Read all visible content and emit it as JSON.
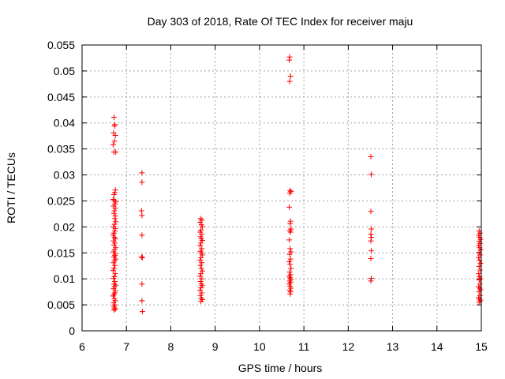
{
  "chart_data": {
    "type": "scatter",
    "title": "Day 303 of 2018, Rate Of TEC Index for receiver maju",
    "xlabel": "GPS time / hours",
    "ylabel": "ROTI / TECUs",
    "xlim": [
      6,
      15
    ],
    "ylim": [
      0,
      0.055
    ],
    "x_ticks": [
      6,
      7,
      8,
      9,
      10,
      11,
      12,
      13,
      14,
      15
    ],
    "x_tick_labels": [
      "6",
      "7",
      "8",
      "9",
      "10",
      "11",
      "12",
      "13",
      "14",
      "15"
    ],
    "y_ticks": [
      0,
      0.005,
      0.01,
      0.015,
      0.02,
      0.025,
      0.03,
      0.035,
      0.04,
      0.045,
      0.05,
      0.055
    ],
    "y_tick_labels": [
      "0",
      "0.005",
      "0.01",
      "0.015",
      "0.02",
      "0.025",
      "0.03",
      "0.035",
      "0.04",
      "0.045",
      "0.05",
      "0.055"
    ],
    "grid": true,
    "marker": "+",
    "marker_color": "#ff0000",
    "series": [
      {
        "name": "ROTI",
        "points": [
          [
            6.72,
            0.0411
          ],
          [
            6.74,
            0.0397
          ],
          [
            6.73,
            0.0394
          ],
          [
            6.71,
            0.0381
          ],
          [
            6.75,
            0.0376
          ],
          [
            6.73,
            0.0365
          ],
          [
            6.7,
            0.0358
          ],
          [
            6.72,
            0.0344
          ],
          [
            6.76,
            0.0344
          ],
          [
            6.75,
            0.0271
          ],
          [
            6.74,
            0.0266
          ],
          [
            6.72,
            0.0262
          ],
          [
            6.7,
            0.0253
          ],
          [
            6.73,
            0.0251
          ],
          [
            6.76,
            0.0248
          ],
          [
            6.74,
            0.0244
          ],
          [
            6.71,
            0.024
          ],
          [
            6.75,
            0.0236
          ],
          [
            6.73,
            0.0231
          ],
          [
            6.72,
            0.0226
          ],
          [
            6.75,
            0.0221
          ],
          [
            6.74,
            0.0216
          ],
          [
            6.76,
            0.021
          ],
          [
            6.73,
            0.0205
          ],
          [
            6.71,
            0.02
          ],
          [
            6.75,
            0.0197
          ],
          [
            6.74,
            0.0192
          ],
          [
            6.72,
            0.0188
          ],
          [
            6.7,
            0.0184
          ],
          [
            6.73,
            0.018
          ],
          [
            6.75,
            0.0177
          ],
          [
            6.71,
            0.0173
          ],
          [
            6.74,
            0.0169
          ],
          [
            6.72,
            0.0165
          ],
          [
            6.76,
            0.016
          ],
          [
            6.73,
            0.0156
          ],
          [
            6.71,
            0.0152
          ],
          [
            6.75,
            0.0148
          ],
          [
            6.74,
            0.0145
          ],
          [
            6.72,
            0.0142
          ],
          [
            6.76,
            0.0138
          ],
          [
            6.73,
            0.0135
          ],
          [
            6.71,
            0.0131
          ],
          [
            6.74,
            0.0126
          ],
          [
            6.72,
            0.012
          ],
          [
            6.7,
            0.0116
          ],
          [
            6.75,
            0.011
          ],
          [
            6.73,
            0.0104
          ],
          [
            6.71,
            0.0101
          ],
          [
            6.74,
            0.0095
          ],
          [
            6.72,
            0.009
          ],
          [
            6.76,
            0.0088
          ],
          [
            6.73,
            0.0085
          ],
          [
            6.71,
            0.0081
          ],
          [
            6.75,
            0.0077
          ],
          [
            6.74,
            0.0073
          ],
          [
            6.72,
            0.007
          ],
          [
            6.7,
            0.0067
          ],
          [
            6.73,
            0.0062
          ],
          [
            6.75,
            0.0058
          ],
          [
            6.71,
            0.0054
          ],
          [
            6.74,
            0.005
          ],
          [
            6.72,
            0.0047
          ],
          [
            6.73,
            0.0044
          ],
          [
            6.75,
            0.0042
          ],
          [
            6.72,
            0.004
          ],
          [
            7.35,
            0.0304
          ],
          [
            7.35,
            0.0286
          ],
          [
            7.34,
            0.0231
          ],
          [
            7.35,
            0.0222
          ],
          [
            7.35,
            0.0184
          ],
          [
            7.34,
            0.0142
          ],
          [
            7.36,
            0.0141
          ],
          [
            7.35,
            0.009
          ],
          [
            7.35,
            0.0058
          ],
          [
            7.36,
            0.0037
          ],
          [
            8.67,
            0.0216
          ],
          [
            8.7,
            0.0213
          ],
          [
            8.66,
            0.0209
          ],
          [
            8.69,
            0.0204
          ],
          [
            8.71,
            0.02
          ],
          [
            8.68,
            0.0194
          ],
          [
            8.66,
            0.019
          ],
          [
            8.7,
            0.0186
          ],
          [
            8.67,
            0.0181
          ],
          [
            8.69,
            0.0177
          ],
          [
            8.71,
            0.0174
          ],
          [
            8.68,
            0.0169
          ],
          [
            8.66,
            0.0164
          ],
          [
            8.7,
            0.0158
          ],
          [
            8.67,
            0.0153
          ],
          [
            8.69,
            0.015
          ],
          [
            8.71,
            0.0146
          ],
          [
            8.68,
            0.0141
          ],
          [
            8.66,
            0.0136
          ],
          [
            8.7,
            0.0131
          ],
          [
            8.67,
            0.0126
          ],
          [
            8.69,
            0.012
          ],
          [
            8.71,
            0.0115
          ],
          [
            8.68,
            0.011
          ],
          [
            8.66,
            0.0105
          ],
          [
            8.7,
            0.01
          ],
          [
            8.67,
            0.0095
          ],
          [
            8.69,
            0.009
          ],
          [
            8.71,
            0.0087
          ],
          [
            8.68,
            0.0083
          ],
          [
            8.66,
            0.0078
          ],
          [
            8.7,
            0.0073
          ],
          [
            8.67,
            0.0068
          ],
          [
            8.69,
            0.0063
          ],
          [
            8.71,
            0.006
          ],
          [
            8.68,
            0.0057
          ],
          [
            10.68,
            0.0527
          ],
          [
            10.67,
            0.0521
          ],
          [
            10.7,
            0.049
          ],
          [
            10.68,
            0.048
          ],
          [
            10.69,
            0.027
          ],
          [
            10.71,
            0.0268
          ],
          [
            10.68,
            0.0265
          ],
          [
            10.67,
            0.0238
          ],
          [
            10.7,
            0.0211
          ],
          [
            10.69,
            0.0206
          ],
          [
            10.71,
            0.0196
          ],
          [
            10.68,
            0.0193
          ],
          [
            10.7,
            0.019
          ],
          [
            10.67,
            0.0175
          ],
          [
            10.69,
            0.0158
          ],
          [
            10.71,
            0.0152
          ],
          [
            10.68,
            0.0147
          ],
          [
            10.7,
            0.0138
          ],
          [
            10.67,
            0.0133
          ],
          [
            10.69,
            0.0128
          ],
          [
            10.71,
            0.012
          ],
          [
            10.68,
            0.0113
          ],
          [
            10.7,
            0.0108
          ],
          [
            10.67,
            0.0105
          ],
          [
            10.69,
            0.0102
          ],
          [
            10.71,
            0.0099
          ],
          [
            10.68,
            0.0096
          ],
          [
            10.7,
            0.0093
          ],
          [
            10.67,
            0.009
          ],
          [
            10.69,
            0.0086
          ],
          [
            10.71,
            0.0082
          ],
          [
            10.68,
            0.0078
          ],
          [
            10.7,
            0.0075
          ],
          [
            10.69,
            0.0071
          ],
          [
            12.51,
            0.0335
          ],
          [
            12.52,
            0.0301
          ],
          [
            12.51,
            0.023
          ],
          [
            12.52,
            0.0196
          ],
          [
            12.51,
            0.0186
          ],
          [
            12.52,
            0.018
          ],
          [
            12.51,
            0.0173
          ],
          [
            12.52,
            0.0154
          ],
          [
            12.51,
            0.0139
          ],
          [
            12.52,
            0.0101
          ],
          [
            12.51,
            0.0096
          ],
          [
            14.95,
            0.0192
          ],
          [
            14.97,
            0.0188
          ],
          [
            14.94,
            0.0184
          ],
          [
            14.96,
            0.018
          ],
          [
            14.98,
            0.0176
          ],
          [
            14.95,
            0.0172
          ],
          [
            14.97,
            0.0168
          ],
          [
            14.94,
            0.0164
          ],
          [
            14.96,
            0.016
          ],
          [
            14.98,
            0.0156
          ],
          [
            14.95,
            0.0151
          ],
          [
            14.97,
            0.0146
          ],
          [
            14.94,
            0.0141
          ],
          [
            14.96,
            0.0136
          ],
          [
            14.98,
            0.013
          ],
          [
            14.95,
            0.0124
          ],
          [
            14.97,
            0.0117
          ],
          [
            14.94,
            0.011
          ],
          [
            14.96,
            0.0104
          ],
          [
            14.98,
            0.01
          ],
          [
            14.95,
            0.0098
          ],
          [
            14.97,
            0.009
          ],
          [
            14.94,
            0.0085
          ],
          [
            14.96,
            0.0082
          ],
          [
            14.98,
            0.0079
          ],
          [
            14.95,
            0.0075
          ],
          [
            14.97,
            0.0068
          ],
          [
            14.94,
            0.0064
          ],
          [
            14.96,
            0.0061
          ],
          [
            14.98,
            0.0058
          ],
          [
            14.95,
            0.0055
          ]
        ]
      }
    ]
  }
}
